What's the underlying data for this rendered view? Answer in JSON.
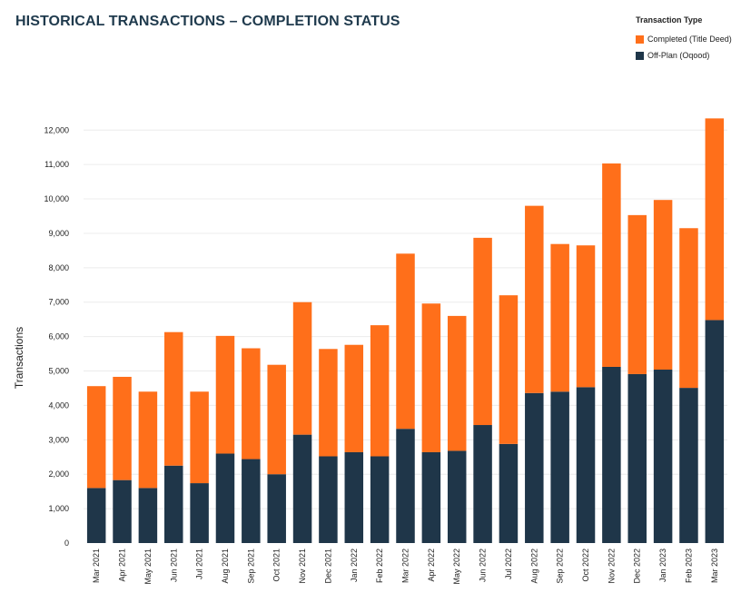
{
  "title": "HISTORICAL TRANSACTIONS – COMPLETION STATUS",
  "legend": {
    "title": "Transaction Type",
    "items": [
      {
        "label": "Completed (Title Deed)",
        "color": "#ff6f1a"
      },
      {
        "label": "Off-Plan (Oqood)",
        "color": "#1f3649"
      }
    ]
  },
  "chart_data": {
    "type": "bar",
    "stacked": true,
    "ylabel": "Transactions",
    "ylim": [
      0,
      12500
    ],
    "yticks": [
      0,
      1000,
      2000,
      3000,
      4000,
      5000,
      6000,
      7000,
      8000,
      9000,
      10000,
      11000,
      12000
    ],
    "ytick_labels": [
      "0",
      "1,000",
      "2,000",
      "3,000",
      "4,000",
      "5,000",
      "6,000",
      "7,000",
      "8,000",
      "9,000",
      "10,000",
      "11,000",
      "12,000"
    ],
    "grid": true,
    "legend_position": "top-right",
    "categories": [
      "Mar 2021",
      "Apr 2021",
      "May 2021",
      "Jun 2021",
      "Jul 2021",
      "Aug 2021",
      "Sep 2021",
      "Oct 2021",
      "Nov 2021",
      "Dec 2021",
      "Jan 2022",
      "Feb 2022",
      "Mar 2022",
      "Apr 2022",
      "May 2022",
      "Jun 2022",
      "Jul 2022",
      "Aug 2022",
      "Sep 2022",
      "Oct 2022",
      "Nov 2022",
      "Dec 2022",
      "Jan 2023",
      "Feb 2023",
      "Mar 2023"
    ],
    "series": [
      {
        "name": "Off-Plan (Oqood)",
        "color": "#1f3649",
        "values": [
          1600,
          1830,
          1600,
          2250,
          1740,
          2600,
          2440,
          2000,
          3150,
          2520,
          2640,
          2520,
          3320,
          2640,
          2680,
          3430,
          2880,
          4360,
          4400,
          4530,
          5120,
          4910,
          5040,
          4510,
          6480
        ]
      },
      {
        "name": "Completed (Title Deed)",
        "color": "#ff6f1a",
        "values": [
          2960,
          3000,
          2800,
          3880,
          2660,
          3420,
          3220,
          3180,
          3850,
          3120,
          3120,
          3810,
          5090,
          4320,
          3920,
          5440,
          4320,
          5440,
          4290,
          4120,
          5910,
          4620,
          4930,
          4640,
          5860
        ]
      }
    ]
  }
}
